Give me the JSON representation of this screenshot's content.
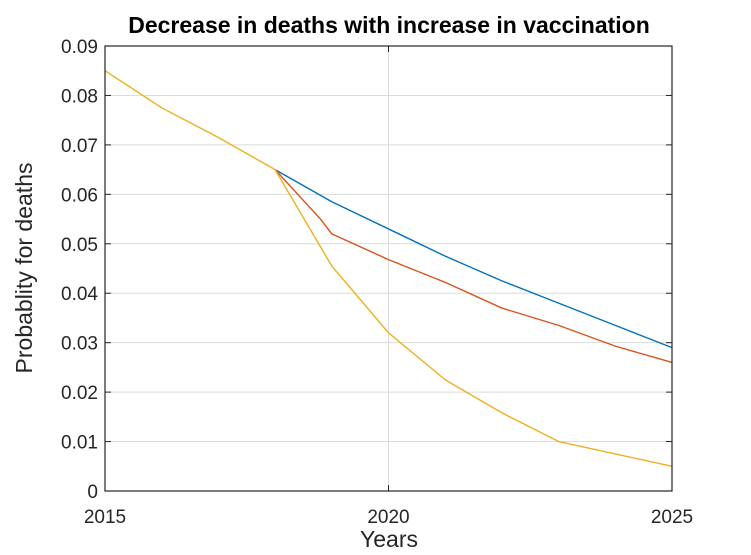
{
  "chart_data": {
    "type": "line",
    "title": "Decrease in deaths with  increase in vaccination",
    "xlabel": "Years",
    "ylabel": "Probablity for deaths",
    "xlim": [
      2015,
      2025
    ],
    "ylim": [
      0,
      0.09
    ],
    "xticks": [
      2015,
      2020,
      2025
    ],
    "xtick_labels": [
      "2015",
      "2020",
      "2025"
    ],
    "yticks": [
      0,
      0.01,
      0.02,
      0.03,
      0.04,
      0.05,
      0.06,
      0.07,
      0.08,
      0.09
    ],
    "ytick_labels": [
      "0",
      "0.01",
      "0.02",
      "0.03",
      "0.04",
      "0.05",
      "0.06",
      "0.07",
      "0.08",
      "0.09"
    ],
    "grid": true,
    "series": [
      {
        "color": "#0072bd",
        "x": [
          2018,
          2019,
          2020,
          2021,
          2022,
          2023,
          2024,
          2025
        ],
        "y": [
          0.065,
          0.0585,
          0.053,
          0.0475,
          0.0425,
          0.038,
          0.0335,
          0.029
        ]
      },
      {
        "color": "#d95319",
        "x": [
          2018,
          2018.8,
          2019,
          2020,
          2021,
          2022,
          2023,
          2024,
          2025
        ],
        "y": [
          0.065,
          0.055,
          0.052,
          0.0468,
          0.0422,
          0.037,
          0.0335,
          0.0293,
          0.026
        ]
      },
      {
        "color": "#edb120",
        "x": [
          2015,
          2016,
          2017,
          2018,
          2019,
          2020,
          2021,
          2022,
          2023,
          2024,
          2025
        ],
        "y": [
          0.085,
          0.0775,
          0.0715,
          0.065,
          0.0455,
          0.032,
          0.0225,
          0.0158,
          0.01,
          0.0075,
          0.005
        ]
      }
    ]
  }
}
